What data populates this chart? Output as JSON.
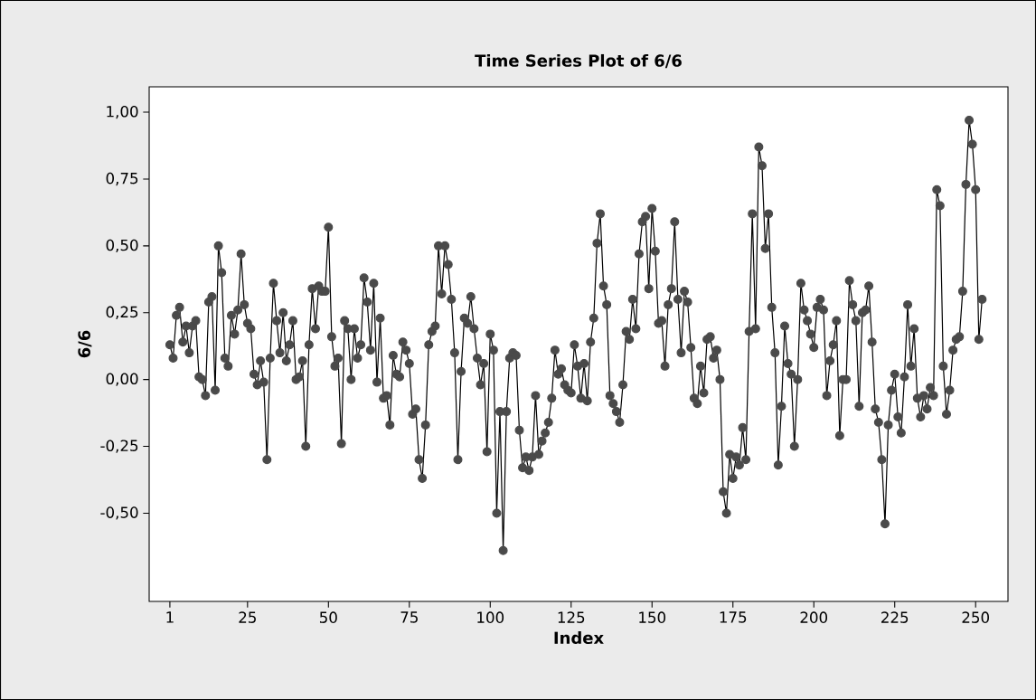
{
  "chart_data": {
    "type": "line",
    "title": "Time Series Plot of 6/6",
    "xlabel": "Index",
    "ylabel": "6/6",
    "x": [
      1,
      2,
      3,
      4,
      5,
      6,
      7,
      8,
      9,
      10,
      11,
      12,
      13,
      14,
      15,
      16,
      17,
      18,
      19,
      20,
      21,
      22,
      23,
      24,
      25,
      26,
      27,
      28,
      29,
      30,
      31,
      32,
      33,
      34,
      35,
      36,
      37,
      38,
      39,
      40,
      41,
      42,
      43,
      44,
      45,
      46,
      47,
      48,
      49,
      50,
      51,
      52,
      53,
      54,
      55,
      56,
      57,
      58,
      59,
      60,
      61,
      62,
      63,
      64,
      65,
      66,
      67,
      68,
      69,
      70,
      71,
      72,
      73,
      74,
      75,
      76,
      77,
      78,
      79,
      80,
      81,
      82,
      83,
      84,
      85,
      86,
      87,
      88,
      89,
      90,
      91,
      92,
      93,
      94,
      95,
      96,
      97,
      98,
      99,
      100,
      101,
      102,
      103,
      104,
      105,
      106,
      107,
      108,
      109,
      110,
      111,
      112,
      113,
      114,
      115,
      116,
      117,
      118,
      119,
      120,
      121,
      122,
      123,
      124,
      125,
      126,
      127,
      128,
      129,
      130,
      131,
      132,
      133,
      134,
      135,
      136,
      137,
      138,
      139,
      140,
      141,
      142,
      143,
      144,
      145,
      146,
      147,
      148,
      149,
      150,
      151,
      152,
      153,
      154,
      155,
      156,
      157,
      158,
      159,
      160,
      161,
      162,
      163,
      164,
      165,
      166,
      167,
      168,
      169,
      170,
      171,
      172,
      173,
      174,
      175,
      176,
      177,
      178,
      179,
      180,
      181,
      182,
      183,
      184,
      185,
      186,
      187,
      188,
      189,
      190,
      191,
      192,
      193,
      194,
      195,
      196,
      197,
      198,
      199,
      200,
      201,
      202,
      203,
      204,
      205,
      206,
      207,
      208,
      209,
      210,
      211,
      212,
      213,
      214,
      215,
      216,
      217,
      218,
      219,
      220,
      221,
      222,
      223,
      224,
      225,
      226,
      227,
      228,
      229,
      230,
      231,
      232,
      233,
      234,
      235,
      236,
      237,
      238,
      239,
      240,
      241,
      242,
      243,
      244,
      245,
      246,
      247,
      248,
      249,
      250,
      251,
      252
    ],
    "series": [
      {
        "color": "#4a4a4a",
        "values": [
          0.13,
          0.08,
          0.24,
          0.27,
          0.14,
          0.2,
          0.1,
          0.2,
          0.22,
          0.01,
          0.0,
          -0.06,
          0.29,
          0.31,
          -0.04,
          0.5,
          0.4,
          0.08,
          0.05,
          0.24,
          0.17,
          0.26,
          0.47,
          0.28,
          0.21,
          0.19,
          0.02,
          -0.02,
          0.07,
          -0.01,
          -0.3,
          0.08,
          0.36,
          0.22,
          0.1,
          0.25,
          0.07,
          0.13,
          0.22,
          0.0,
          0.01,
          0.07,
          -0.25,
          0.13,
          0.34,
          0.19,
          0.35,
          0.33,
          0.33,
          0.57,
          0.16,
          0.05,
          0.08,
          -0.24,
          0.22,
          0.19,
          0.0,
          0.19,
          0.08,
          0.13,
          0.38,
          0.29,
          0.11,
          0.36,
          -0.01,
          0.23,
          -0.07,
          -0.06,
          -0.17,
          0.09,
          0.02,
          0.01,
          0.14,
          0.11,
          0.06,
          -0.13,
          -0.11,
          -0.3,
          -0.37,
          -0.17,
          0.13,
          0.18,
          0.2,
          0.5,
          0.32,
          0.5,
          0.43,
          0.3,
          0.1,
          -0.3,
          0.03,
          0.23,
          0.21,
          0.31,
          0.19,
          0.08,
          -0.02,
          0.06,
          -0.27,
          0.17,
          0.11,
          -0.5,
          -0.12,
          -0.64,
          -0.12,
          0.08,
          0.1,
          0.09,
          -0.19,
          -0.33,
          -0.29,
          -0.34,
          -0.29,
          -0.06,
          -0.28,
          -0.23,
          -0.2,
          -0.16,
          -0.07,
          0.11,
          0.02,
          0.04,
          -0.02,
          -0.04,
          -0.05,
          0.13,
          0.05,
          -0.07,
          0.06,
          -0.08,
          0.14,
          0.23,
          0.51,
          0.62,
          0.35,
          0.28,
          -0.06,
          -0.09,
          -0.12,
          -0.16,
          -0.02,
          0.18,
          0.15,
          0.3,
          0.19,
          0.47,
          0.59,
          0.61,
          0.34,
          0.64,
          0.48,
          0.21,
          0.22,
          0.05,
          0.28,
          0.34,
          0.59,
          0.3,
          0.1,
          0.33,
          0.29,
          0.12,
          -0.07,
          -0.09,
          0.05,
          -0.05,
          0.15,
          0.16,
          0.08,
          0.11,
          0.0,
          -0.42,
          -0.5,
          -0.28,
          -0.37,
          -0.29,
          -0.32,
          -0.18,
          -0.3,
          0.18,
          0.62,
          0.19,
          0.87,
          0.8,
          0.49,
          0.62,
          0.27,
          0.1,
          -0.32,
          -0.1,
          0.2,
          0.06,
          0.02,
          -0.25,
          0.0,
          0.36,
          0.26,
          0.22,
          0.17,
          0.12,
          0.27,
          0.3,
          0.26,
          -0.06,
          0.07,
          0.13,
          0.22,
          -0.21,
          0.0,
          0.0,
          0.37,
          0.28,
          0.22,
          -0.1,
          0.25,
          0.26,
          0.35,
          0.14,
          -0.11,
          -0.16,
          -0.3,
          -0.54,
          -0.17,
          -0.04,
          0.02,
          -0.14,
          -0.2,
          0.01,
          0.28,
          0.05,
          0.19,
          -0.07,
          -0.14,
          -0.06,
          -0.11,
          -0.03,
          -0.06,
          0.71,
          0.65,
          0.05,
          -0.13,
          -0.04,
          0.11,
          0.15,
          0.16,
          0.33,
          0.73,
          0.97,
          0.88,
          0.71,
          0.15,
          0.3
        ]
      }
    ],
    "marker": "circle",
    "xlim": [
      -5.4,
      260
    ],
    "ylim": [
      -0.83,
      1.095
    ],
    "xticks": [
      1,
      25,
      50,
      75,
      100,
      125,
      150,
      175,
      200,
      225,
      250
    ],
    "yticks": [
      {
        "value": -0.5,
        "label": "-0,50"
      },
      {
        "value": -0.25,
        "label": "-0,25"
      },
      {
        "value": 0,
        "label": "0,00"
      },
      {
        "value": 0.25,
        "label": "0,25"
      },
      {
        "value": 0.5,
        "label": "0,50"
      },
      {
        "value": 0.75,
        "label": "0,75"
      },
      {
        "value": 1,
        "label": "1,00"
      }
    ]
  }
}
